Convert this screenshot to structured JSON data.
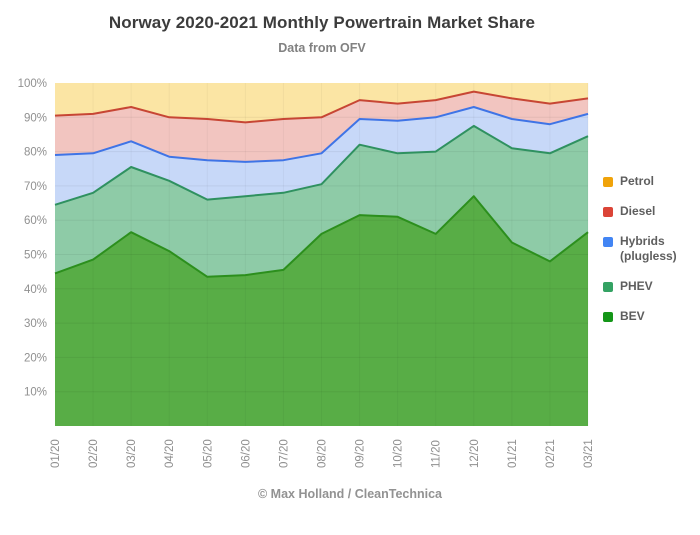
{
  "title": "Norway 2020-2021 Monthly Powertrain Market Share",
  "subtitle": "Data from OFV",
  "footer": "© Max Holland / CleanTechnica",
  "chart_data": {
    "type": "area",
    "stacked": true,
    "stack_total": 100,
    "unit": "%",
    "grid": true,
    "legend_position": "right",
    "ylim": [
      0,
      100
    ],
    "y_ticks": [
      10,
      20,
      30,
      40,
      50,
      60,
      70,
      80,
      90,
      100
    ],
    "x": [
      "01/20",
      "02/20",
      "03/20",
      "04/20",
      "05/20",
      "06/20",
      "07/20",
      "08/20",
      "09/20",
      "10/20",
      "11/20",
      "12/20",
      "01/21",
      "02/21",
      "03/21"
    ],
    "series": [
      {
        "name": "BEV",
        "legend_label": "BEV",
        "values": [
          44.5,
          48.5,
          56.5,
          51,
          43.5,
          44,
          45.5,
          56,
          61.5,
          61,
          56,
          67,
          53.5,
          48,
          56.5
        ],
        "line_color": "#2c8f1d",
        "fill_color": "#58ad46",
        "legend_color": "#149618"
      },
      {
        "name": "PHEV",
        "legend_label": "PHEV",
        "values": [
          20,
          19.5,
          19,
          20.5,
          22.5,
          23,
          22.5,
          14.5,
          20.5,
          18.5,
          24,
          20.5,
          27.5,
          31.5,
          28
        ],
        "line_color": "#2f9160",
        "fill_color": "#8ecba7",
        "legend_color": "#34a263"
      },
      {
        "name": "Hybrids (plugless)",
        "legend_label": "Hybrids\n(plugless)",
        "values": [
          14.5,
          11.5,
          7.5,
          7,
          11.5,
          10,
          9.5,
          9,
          7.5,
          9.5,
          10,
          5.5,
          8.5,
          8.5,
          6.5
        ],
        "line_color": "#3f74e6",
        "fill_color": "#c7d8f8",
        "legend_color": "#4285f4"
      },
      {
        "name": "Diesel",
        "legend_label": "Diesel",
        "values": [
          11.5,
          11.5,
          10,
          11.5,
          12,
          11.5,
          12,
          10.5,
          5.5,
          5,
          5,
          4.5,
          6,
          6,
          4.5
        ],
        "line_color": "#c74634",
        "fill_color": "#f2c5c0",
        "legend_color": "#db4437"
      },
      {
        "name": "Petrol",
        "legend_label": "Petrol",
        "values": [
          9.5,
          9,
          7,
          10,
          10.5,
          11.5,
          10.5,
          10,
          5,
          6,
          5,
          2.5,
          4.5,
          6,
          4.5
        ],
        "line_color": "#fbe5a4",
        "fill_color": "#fbe5a4",
        "legend_color": "#f0a30a"
      }
    ],
    "axis_label_color": "#909090"
  }
}
